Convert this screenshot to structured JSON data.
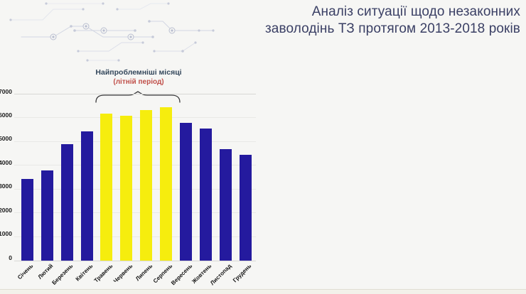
{
  "page": {
    "title": {
      "line1": "Аналіз ситуації щодо незаконних",
      "line2": "заволодінь ТЗ протягом 2013-2018 років"
    },
    "annotation": {
      "line1": "Найпроблемніші місяці",
      "line2": "(літній період)"
    }
  },
  "colors": {
    "background": "#f6f6f4",
    "title_text": "#3b4065",
    "annotation_text": "#33475b",
    "annotation_accent": "#c0504a",
    "bar_navy": "#241a9e",
    "bar_yellow": "#f6ed0e",
    "gridline": "#e9e9e6",
    "axis_line": "#d8d8d5"
  },
  "chart_data": {
    "type": "bar",
    "title": "",
    "xlabel": "",
    "ylabel": "",
    "categories": [
      "Січень",
      "Лютий",
      "Березень",
      "Квітень",
      "Травень",
      "Червень",
      "Липень",
      "Серпень",
      "Вересень",
      "Жовтень",
      "Листопад",
      "Грудень"
    ],
    "values": [
      3450,
      3800,
      4900,
      5450,
      6200,
      6100,
      6350,
      6450,
      5800,
      5550,
      4700,
      4450
    ],
    "highlight_indices": [
      4,
      5,
      6,
      7
    ],
    "highlight_label": "Найпроблемніші місяці (літній період)",
    "bar_color": "#241a9e",
    "highlight_color": "#f6ed0e",
    "yticks": [
      0,
      1000,
      2000,
      3000,
      4000,
      5000,
      6000,
      7000
    ],
    "ylim": [
      0,
      7000
    ],
    "grid": true,
    "legend": null
  }
}
